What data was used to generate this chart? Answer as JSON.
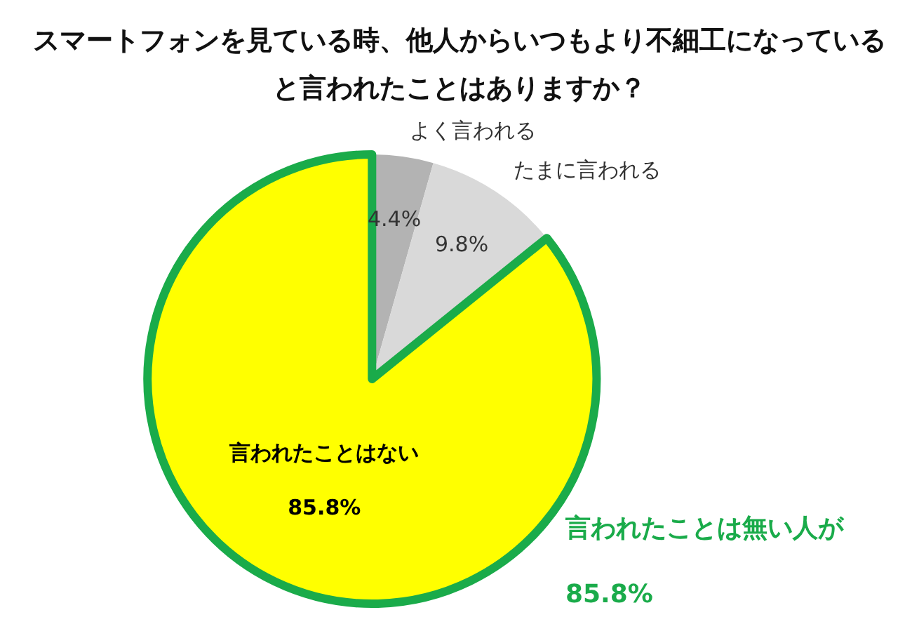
{
  "chart_data": {
    "type": "pie",
    "title": "スマートフォンを見ている時、他人からいつもより不細工になっていると言われたことはありますか？",
    "categories": [
      "よく言われる",
      "たまに言われる",
      "言われたことはない"
    ],
    "values": [
      4.4,
      9.8,
      85.8
    ],
    "value_labels": [
      "4.4%",
      "9.8%",
      "85.8%"
    ],
    "colors": [
      "#b3b3b3",
      "#d9d9d9",
      "#ffff00"
    ],
    "annotations": [
      "言われたことは無い人が\n85.8%"
    ],
    "legend": false
  }
}
